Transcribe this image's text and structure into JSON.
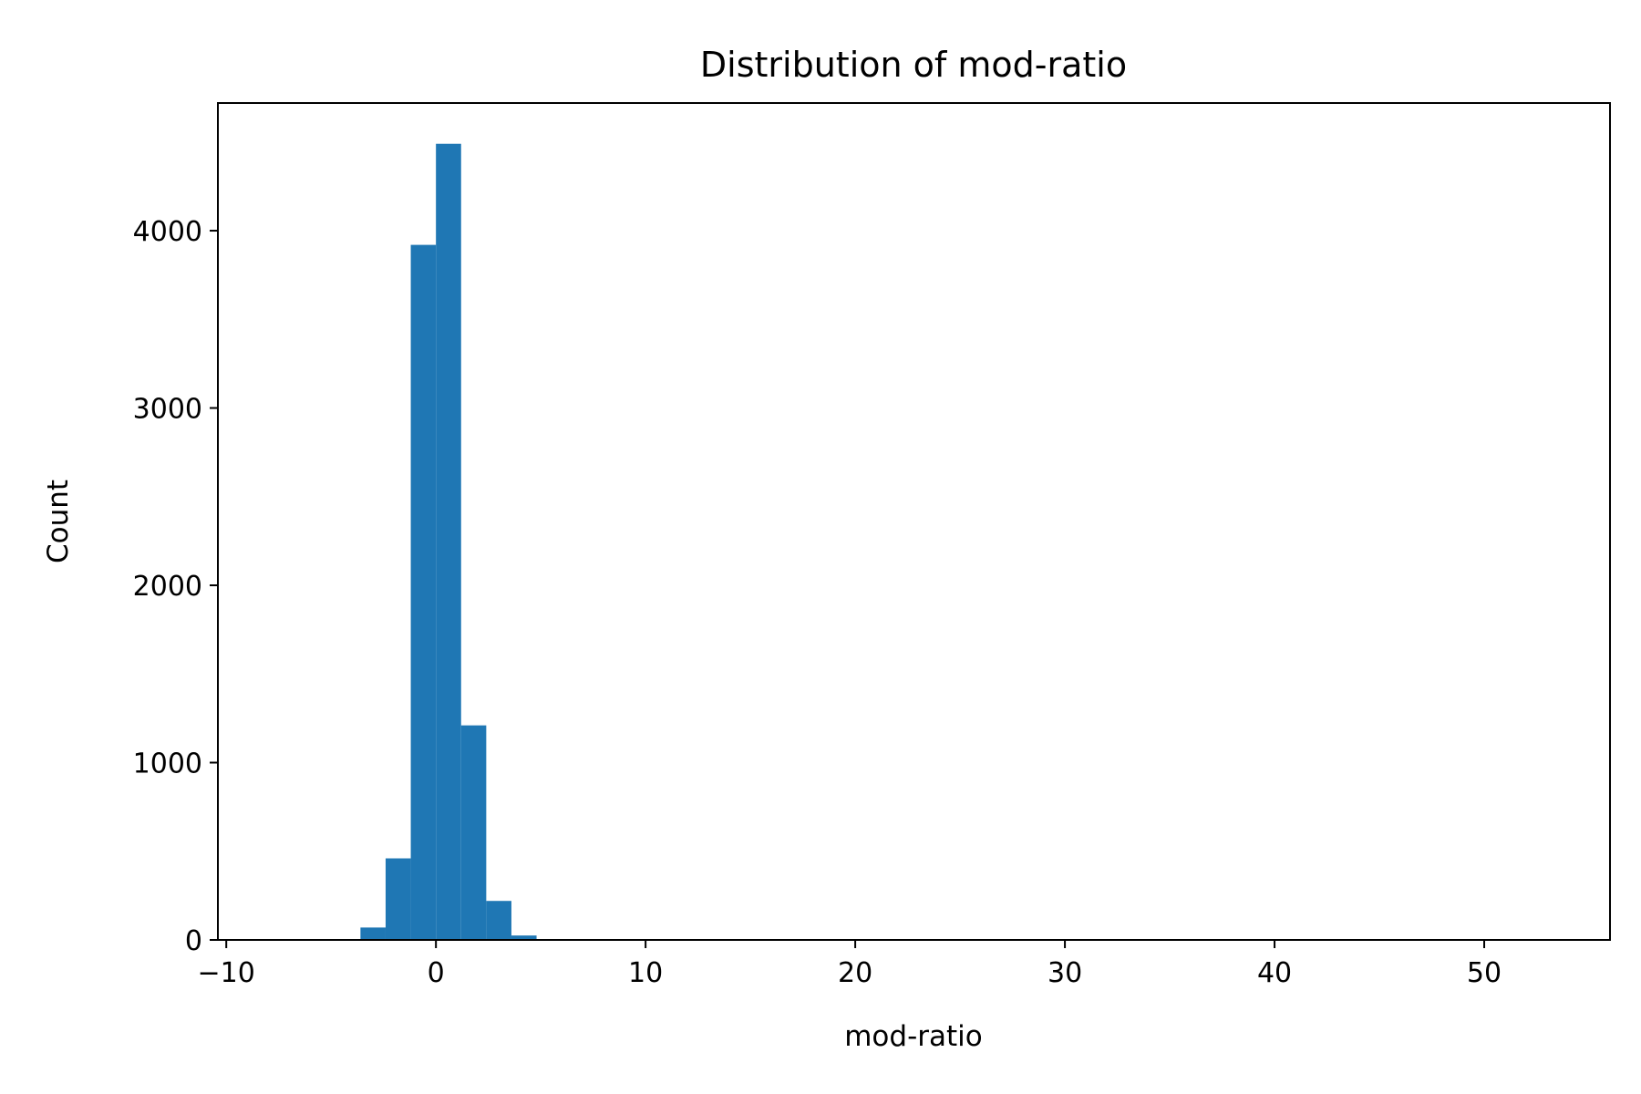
{
  "chart_data": {
    "type": "bar",
    "title": "Distribution of mod-ratio",
    "xlabel": "mod-ratio",
    "ylabel": "Count",
    "xlim": [
      -10.4,
      56
    ],
    "ylim": [
      0,
      4720
    ],
    "grid": false,
    "legend": "none",
    "colors": {
      "bar": "#1f77b4",
      "axes": "#000000"
    },
    "x_ticks": [
      -10,
      0,
      10,
      20,
      30,
      40,
      50
    ],
    "x_tick_labels": [
      "−10",
      "0",
      "10",
      "20",
      "30",
      "40",
      "50"
    ],
    "y_ticks": [
      0,
      1000,
      2000,
      3000,
      4000
    ],
    "y_tick_labels": [
      "0",
      "1000",
      "2000",
      "3000",
      "4000"
    ],
    "bins": [
      {
        "start": -3.6,
        "end": -2.4,
        "count": 70
      },
      {
        "start": -2.4,
        "end": -1.2,
        "count": 460
      },
      {
        "start": -1.2,
        "end": 0.0,
        "count": 3920
      },
      {
        "start": 0.0,
        "end": 1.2,
        "count": 4490
      },
      {
        "start": 1.2,
        "end": 2.4,
        "count": 1210
      },
      {
        "start": 2.4,
        "end": 3.6,
        "count": 220
      },
      {
        "start": 3.6,
        "end": 4.8,
        "count": 25
      }
    ]
  }
}
